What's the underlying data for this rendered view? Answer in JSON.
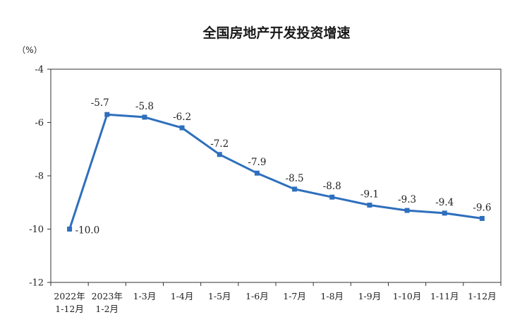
{
  "chart_data": {
    "type": "line",
    "title": "全国房地产开发投资增速",
    "ylabel": "（%）",
    "xlabel": "",
    "categories": [
      [
        "2022年",
        "1-12月"
      ],
      [
        "2023年",
        "1-2月"
      ],
      [
        "1-3月"
      ],
      [
        "1-4月"
      ],
      [
        "1-5月"
      ],
      [
        "1-6月"
      ],
      [
        "1-7月"
      ],
      [
        "1-8月"
      ],
      [
        "1-9月"
      ],
      [
        "1-10月"
      ],
      [
        "1-11月"
      ],
      [
        "1-12月"
      ]
    ],
    "values": [
      -10.0,
      -5.7,
      -5.8,
      -6.2,
      -7.2,
      -7.9,
      -8.5,
      -8.8,
      -9.1,
      -9.3,
      -9.4,
      -9.6
    ],
    "data_labels": [
      "-10.0",
      "-5.7",
      "-5.8",
      "-6.2",
      "-7.2",
      "-7.9",
      "-8.5",
      "-8.8",
      "-9.1",
      "-9.3",
      "-9.4",
      "-9.6"
    ],
    "ylim": [
      -12,
      -4
    ],
    "yticks": [
      -4,
      -6,
      -8,
      -10,
      -12
    ],
    "ytick_labels": [
      "-4",
      "-6",
      "-8",
      "-10",
      "-12"
    ],
    "grid": false,
    "legend": "none",
    "line_color": "#2e6fbd",
    "axis_color": "#333333"
  }
}
